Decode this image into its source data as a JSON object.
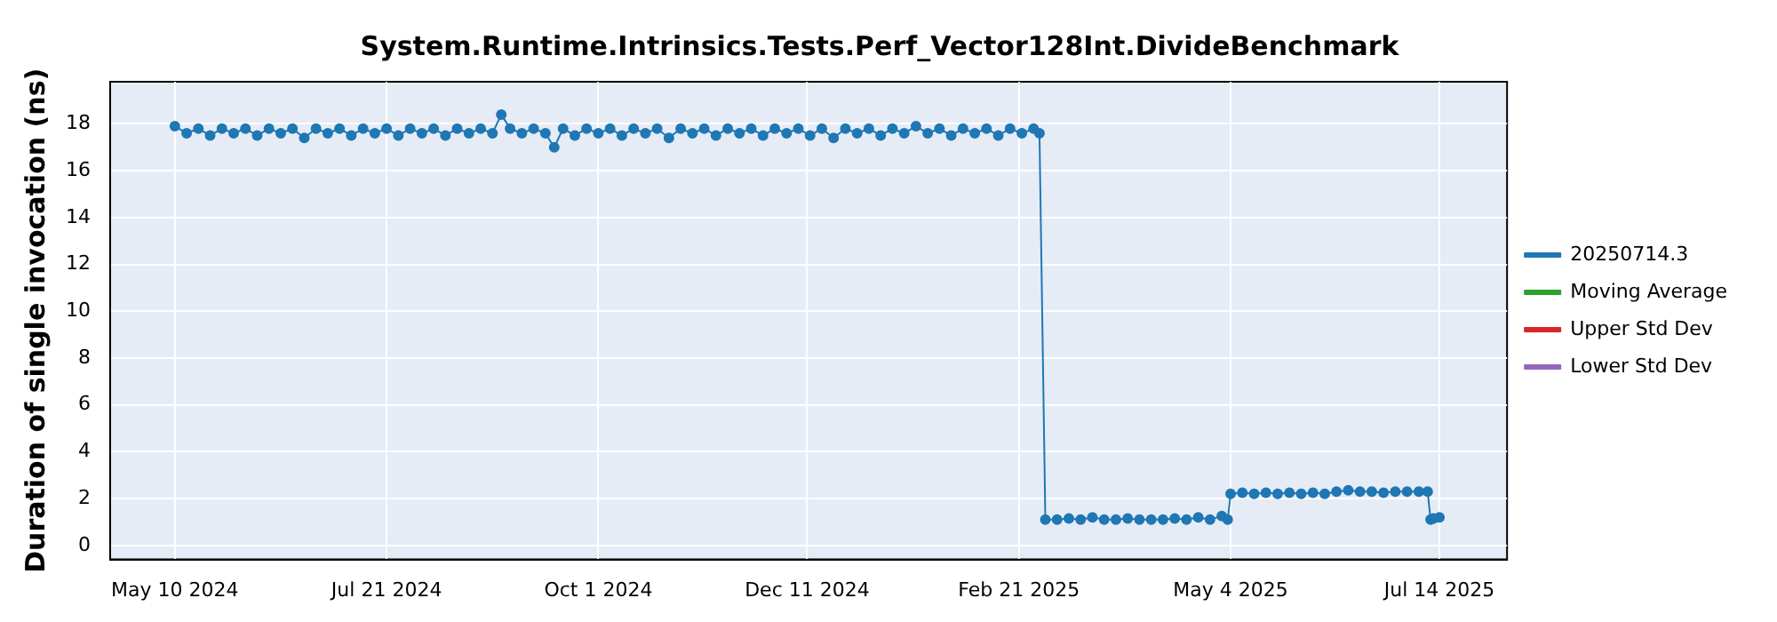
{
  "chart_data": {
    "type": "line",
    "title": "System.Runtime.Intrinsics.Tests.Perf_Vector128Int.DivideBenchmark",
    "ylabel": "Duration of single invocation (ns)",
    "x": [
      "2024-05-10",
      "2024-05-14",
      "2024-05-18",
      "2024-05-22",
      "2024-05-26",
      "2024-05-30",
      "2024-06-03",
      "2024-06-07",
      "2024-06-11",
      "2024-06-15",
      "2024-06-19",
      "2024-06-23",
      "2024-06-27",
      "2024-07-01",
      "2024-07-05",
      "2024-07-09",
      "2024-07-13",
      "2024-07-17",
      "2024-07-21",
      "2024-07-25",
      "2024-07-29",
      "2024-08-02",
      "2024-08-06",
      "2024-08-10",
      "2024-08-14",
      "2024-08-18",
      "2024-08-22",
      "2024-08-26",
      "2024-08-29",
      "2024-09-01",
      "2024-09-05",
      "2024-09-09",
      "2024-09-13",
      "2024-09-16",
      "2024-09-19",
      "2024-09-23",
      "2024-09-27",
      "2024-10-01",
      "2024-10-05",
      "2024-10-09",
      "2024-10-13",
      "2024-10-17",
      "2024-10-21",
      "2024-10-25",
      "2024-10-29",
      "2024-11-02",
      "2024-11-06",
      "2024-11-10",
      "2024-11-14",
      "2024-11-18",
      "2024-11-22",
      "2024-11-26",
      "2024-11-30",
      "2024-12-04",
      "2024-12-08",
      "2024-12-12",
      "2024-12-16",
      "2024-12-20",
      "2024-12-24",
      "2024-12-28",
      "2025-01-01",
      "2025-01-05",
      "2025-01-09",
      "2025-01-13",
      "2025-01-17",
      "2025-01-21",
      "2025-01-25",
      "2025-01-29",
      "2025-02-02",
      "2025-02-06",
      "2025-02-10",
      "2025-02-14",
      "2025-02-18",
      "2025-02-22",
      "2025-02-26",
      "2025-02-28",
      "2025-03-02",
      "2025-03-06",
      "2025-03-10",
      "2025-03-14",
      "2025-03-18",
      "2025-03-22",
      "2025-03-26",
      "2025-03-30",
      "2025-04-03",
      "2025-04-07",
      "2025-04-11",
      "2025-04-15",
      "2025-04-19",
      "2025-04-23",
      "2025-04-27",
      "2025-05-01",
      "2025-05-03",
      "2025-05-04",
      "2025-05-08",
      "2025-05-12",
      "2025-05-16",
      "2025-05-20",
      "2025-05-24",
      "2025-05-28",
      "2025-06-01",
      "2025-06-05",
      "2025-06-09",
      "2025-06-13",
      "2025-06-17",
      "2025-06-21",
      "2025-06-25",
      "2025-06-29",
      "2025-07-03",
      "2025-07-07",
      "2025-07-10",
      "2025-07-11",
      "2025-07-12",
      "2025-07-14"
    ],
    "series": [
      {
        "name": "20250714.3",
        "color": "#1f77b4",
        "values": [
          17.9,
          17.6,
          17.8,
          17.5,
          17.8,
          17.6,
          17.8,
          17.5,
          17.8,
          17.6,
          17.8,
          17.4,
          17.8,
          17.6,
          17.8,
          17.5,
          17.8,
          17.6,
          17.8,
          17.5,
          17.8,
          17.6,
          17.8,
          17.5,
          17.8,
          17.6,
          17.8,
          17.6,
          18.4,
          17.8,
          17.6,
          17.8,
          17.6,
          17.0,
          17.8,
          17.5,
          17.8,
          17.6,
          17.8,
          17.5,
          17.8,
          17.6,
          17.8,
          17.4,
          17.8,
          17.6,
          17.8,
          17.5,
          17.8,
          17.6,
          17.8,
          17.5,
          17.8,
          17.6,
          17.8,
          17.5,
          17.8,
          17.4,
          17.8,
          17.6,
          17.8,
          17.5,
          17.8,
          17.6,
          17.9,
          17.6,
          17.8,
          17.5,
          17.8,
          17.6,
          17.8,
          17.5,
          17.8,
          17.6,
          17.8,
          17.6,
          1.1,
          1.1,
          1.15,
          1.1,
          1.2,
          1.1,
          1.1,
          1.15,
          1.1,
          1.1,
          1.1,
          1.15,
          1.1,
          1.2,
          1.1,
          1.25,
          1.1,
          2.2,
          2.25,
          2.2,
          2.25,
          2.2,
          2.25,
          2.2,
          2.25,
          2.2,
          2.3,
          2.35,
          2.3,
          2.3,
          2.25,
          2.3,
          2.3,
          2.3,
          2.3,
          1.1,
          1.15,
          1.2
        ]
      },
      {
        "name": "Moving Average",
        "color": "#2ca02c",
        "values": [
          null,
          null,
          null,
          null,
          null,
          null,
          null,
          null,
          null,
          null,
          null,
          null,
          null,
          null,
          null,
          null,
          null,
          null,
          null,
          null,
          null,
          null,
          null,
          null,
          null,
          null,
          null,
          null,
          null,
          null,
          null,
          null,
          null,
          null,
          null,
          null,
          null,
          null,
          null,
          null,
          null,
          null,
          null,
          null,
          null,
          null,
          null,
          null,
          null,
          null,
          null,
          null,
          null,
          null,
          null,
          null,
          null,
          null,
          null,
          null,
          null,
          null,
          null,
          null,
          null,
          null,
          null,
          null,
          null,
          null,
          null,
          null,
          null,
          null,
          null,
          null,
          null,
          null,
          null,
          null,
          null,
          null,
          null,
          null,
          null,
          null,
          null,
          null,
          null,
          null,
          null,
          null,
          null,
          null,
          null,
          null,
          null,
          null,
          null,
          null,
          null,
          null,
          null,
          null,
          null,
          null,
          null,
          null,
          null,
          null,
          null,
          null,
          null,
          null
        ]
      },
      {
        "name": "Upper Std Dev",
        "color": "#d62728",
        "values": [
          null,
          null,
          null,
          null,
          null,
          null,
          null,
          null,
          null,
          null,
          null,
          null,
          null,
          null,
          null,
          null,
          null,
          null,
          null,
          null,
          null,
          null,
          null,
          null,
          null,
          null,
          null,
          null,
          null,
          null,
          null,
          null,
          null,
          null,
          null,
          null,
          null,
          null,
          null,
          null,
          null,
          null,
          null,
          null,
          null,
          null,
          null,
          null,
          null,
          null,
          null,
          null,
          null,
          null,
          null,
          null,
          null,
          null,
          null,
          null,
          null,
          null,
          null,
          null,
          null,
          null,
          null,
          null,
          null,
          null,
          null,
          null,
          null,
          null,
          null,
          null,
          null,
          null,
          null,
          null,
          null,
          null,
          null,
          null,
          null,
          null,
          null,
          null,
          null,
          null,
          null,
          null,
          null,
          null,
          null,
          null,
          null,
          null,
          null,
          null,
          null,
          null,
          null,
          null,
          null,
          null,
          null,
          null,
          null,
          null,
          null,
          null,
          null,
          null
        ]
      },
      {
        "name": "Lower Std Dev",
        "color": "#9467bd",
        "values": [
          null,
          null,
          null,
          null,
          null,
          null,
          null,
          null,
          null,
          null,
          null,
          null,
          null,
          null,
          null,
          null,
          null,
          null,
          null,
          null,
          null,
          null,
          null,
          null,
          null,
          null,
          null,
          null,
          null,
          null,
          null,
          null,
          null,
          null,
          null,
          null,
          null,
          null,
          null,
          null,
          null,
          null,
          null,
          null,
          null,
          null,
          null,
          null,
          null,
          null,
          null,
          null,
          null,
          null,
          null,
          null,
          null,
          null,
          null,
          null,
          null,
          null,
          null,
          null,
          null,
          null,
          null,
          null,
          null,
          null,
          null,
          null,
          null,
          null,
          null,
          null,
          null,
          null,
          null,
          null,
          null,
          null,
          null,
          null,
          null,
          null,
          null,
          null,
          null,
          null,
          null,
          null,
          null,
          null,
          null,
          null,
          null,
          null,
          null,
          null,
          null,
          null,
          null,
          null,
          null,
          null,
          null,
          null,
          null,
          null,
          null,
          null,
          null,
          null
        ]
      }
    ],
    "xlim": [
      "2024-04-18",
      "2025-08-06"
    ],
    "xticks": [
      {
        "value": "2024-05-10",
        "label": "May 10 2024"
      },
      {
        "value": "2024-07-21",
        "label": "Jul 21 2024"
      },
      {
        "value": "2024-10-01",
        "label": "Oct 1 2024"
      },
      {
        "value": "2024-12-11",
        "label": "Dec 11 2024"
      },
      {
        "value": "2025-02-21",
        "label": "Feb 21 2025"
      },
      {
        "value": "2025-05-04",
        "label": "May 4 2025"
      },
      {
        "value": "2025-07-14",
        "label": "Jul 14 2025"
      }
    ],
    "ylim": [
      -0.6,
      19.8
    ],
    "yticks": [
      0,
      2,
      4,
      6,
      8,
      10,
      12,
      14,
      16,
      18
    ],
    "grid": true,
    "legend": "right",
    "marker": "circle",
    "line_style": "solid"
  }
}
